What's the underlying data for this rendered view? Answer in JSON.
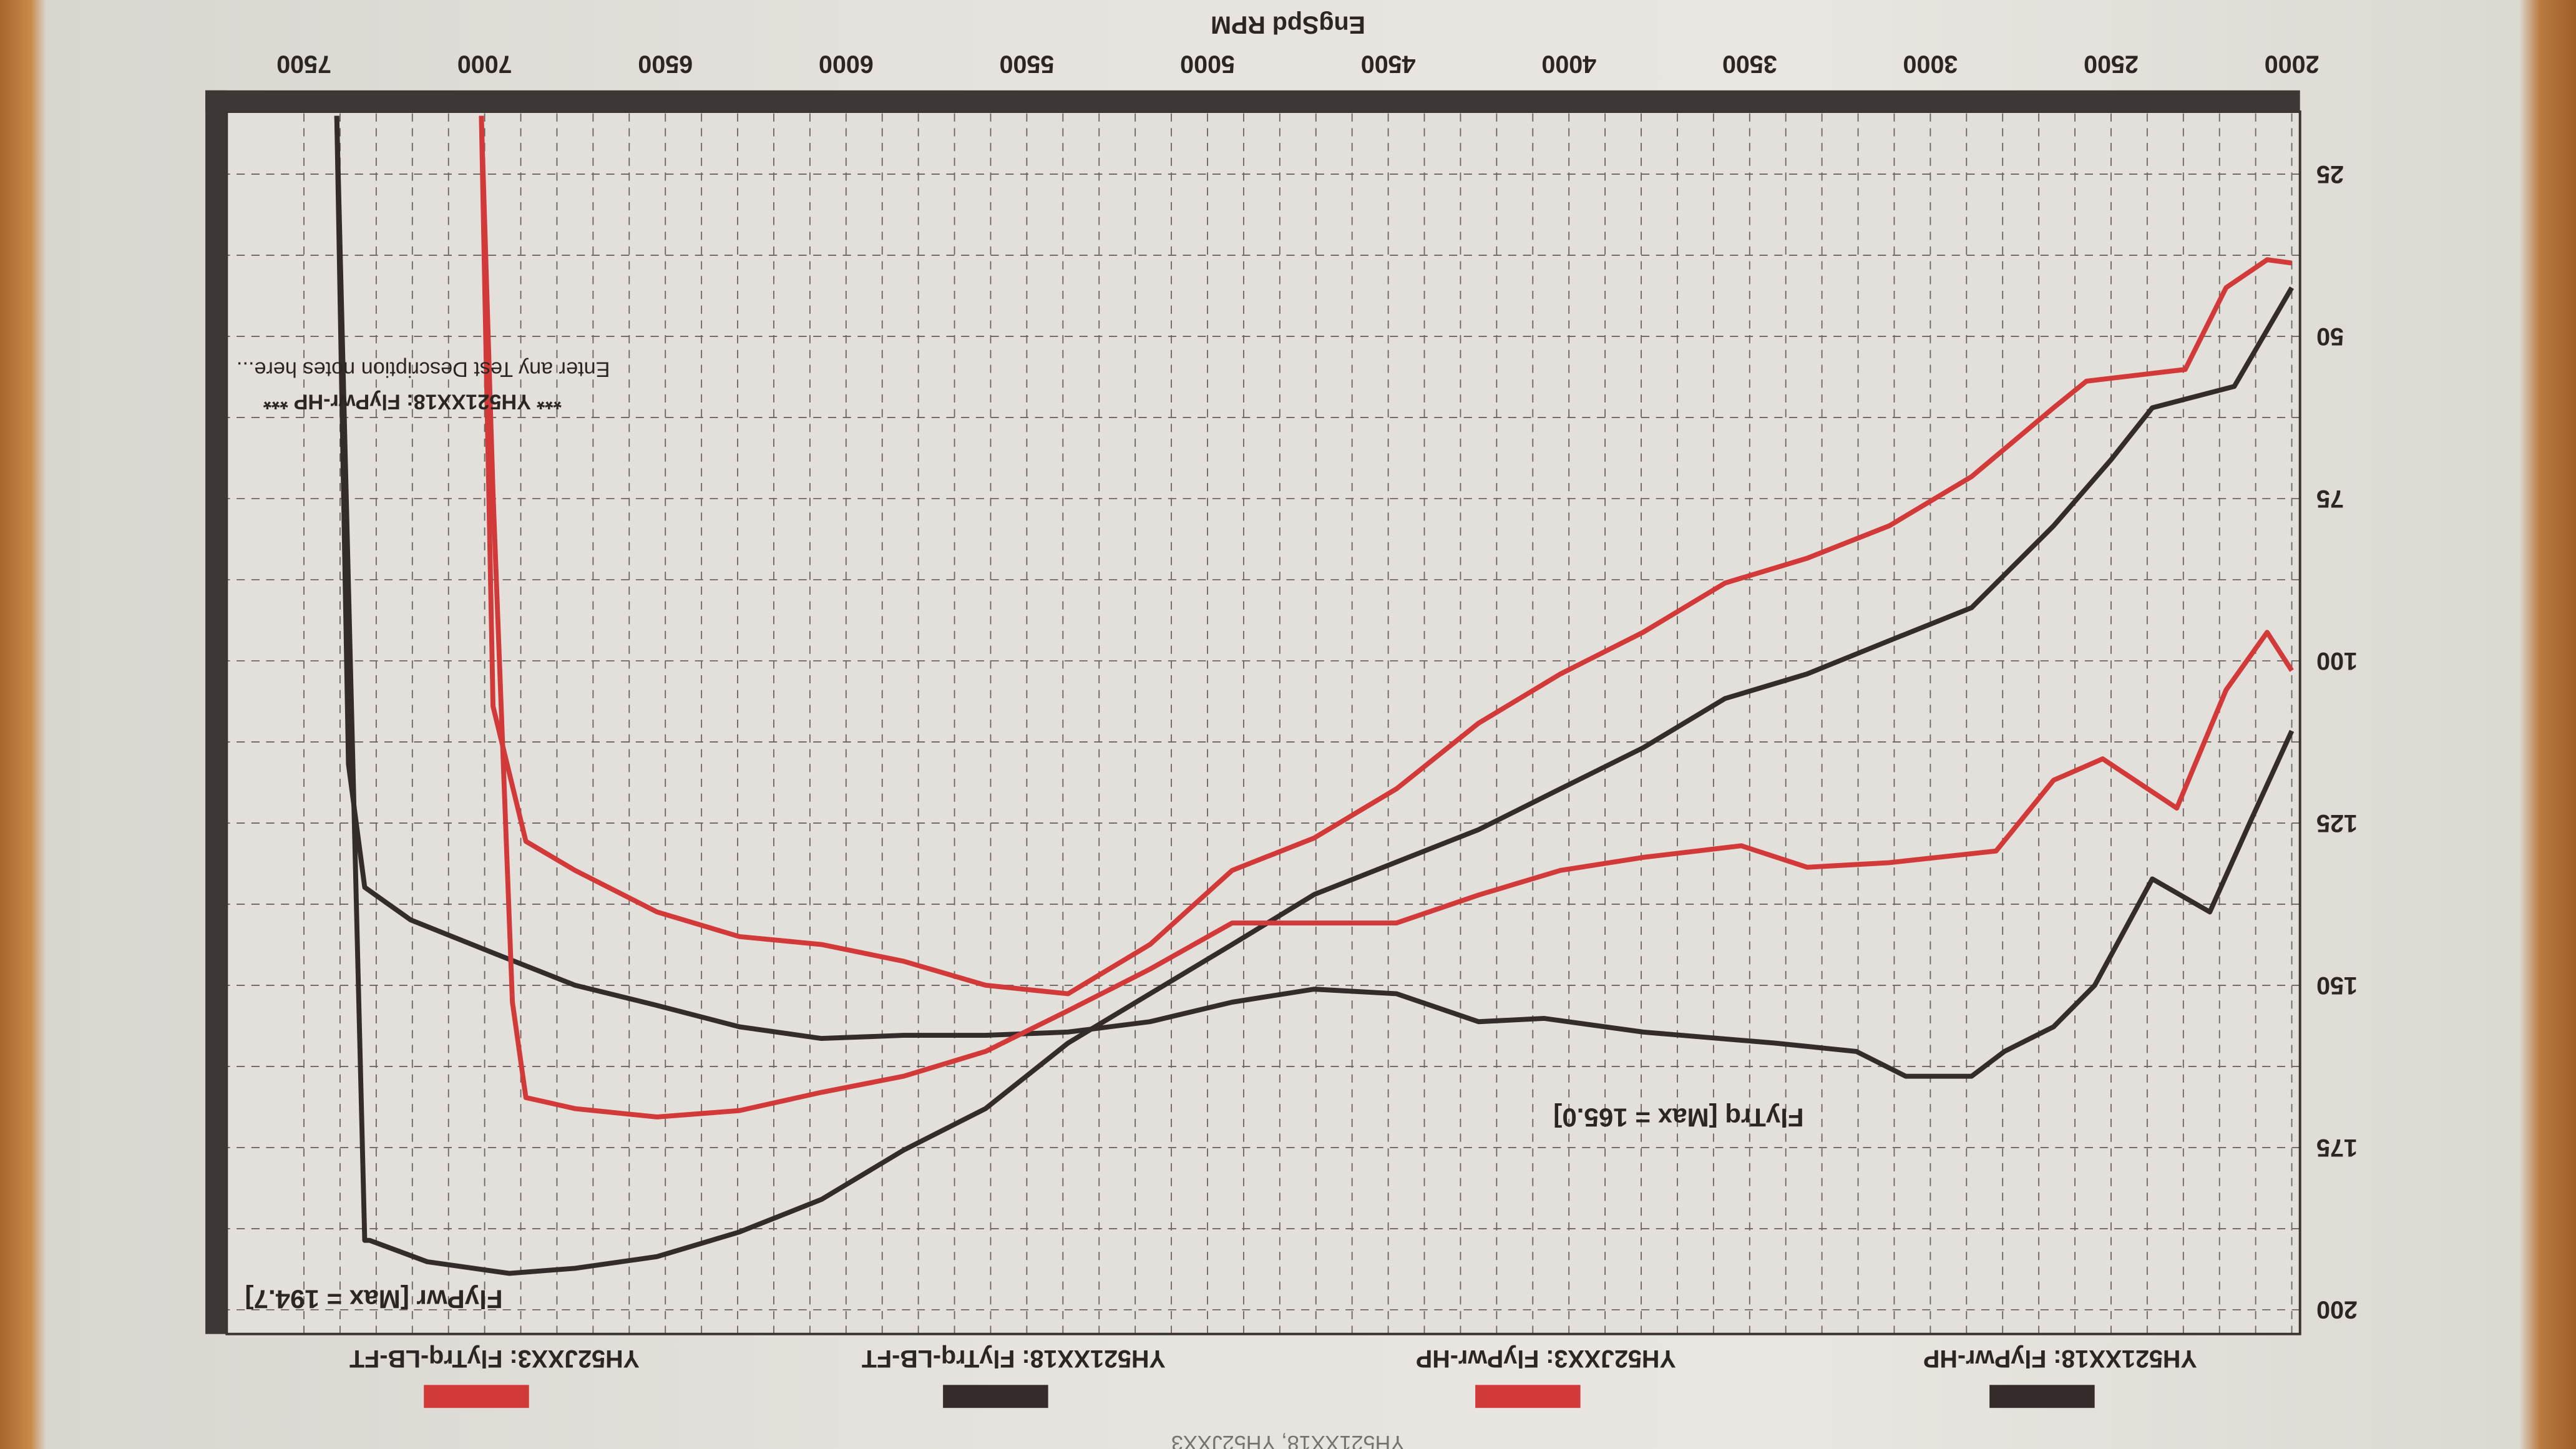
{
  "chart_data": {
    "type": "line",
    "title": "",
    "xlabel": "EngSpd RPM",
    "ylabel": "",
    "xlim": [
      2000,
      7500
    ],
    "ylim": [
      16,
      204
    ],
    "xticks": [
      2000,
      2500,
      3000,
      3500,
      4000,
      4500,
      5000,
      5500,
      6000,
      6500,
      7000,
      7500
    ],
    "yticks": [
      25,
      50,
      75,
      100,
      125,
      150,
      175,
      200
    ],
    "grid": true,
    "legend_position": "top",
    "orientation_note_visible": false,
    "series": [
      {
        "name": "YH521XX18: FlyPwr-HP",
        "color": "#332c2b",
        "x": [
          2000,
          2159,
          2386,
          2500,
          2659,
          2886,
          3114,
          3341,
          3568,
          3795,
          4023,
          4250,
          4477,
          4705,
          4932,
          5159,
          5386,
          5614,
          5841,
          6068,
          6295,
          6523,
          6750,
          6932,
          7159,
          7318,
          7332,
          7409
        ],
        "y": [
          42.5,
          57.7,
          61,
          69,
          79.2,
          91.8,
          96.9,
          102,
          105.8,
          113.4,
          119.7,
          126,
          131,
          136,
          143.7,
          151.3,
          158.9,
          169,
          175.4,
          183,
          188,
          191.8,
          193.6,
          194.4,
          192.6,
          189.3,
          189.3,
          16
        ]
      },
      {
        "name": "YH52JXX3: FlyPwr-HP",
        "color": "#d23a3a",
        "x": [
          2000,
          2068,
          2182,
          2295,
          2568,
          2659,
          2886,
          3114,
          3341,
          3568,
          3795,
          4023,
          4250,
          4477,
          4705,
          4932,
          5159,
          5386,
          5614,
          5841,
          6068,
          6295,
          6523,
          6750,
          6886,
          6977,
          7009
        ],
        "y": [
          38.7,
          38.2,
          42.5,
          55.1,
          56.9,
          61,
          71.6,
          79.2,
          84.2,
          88,
          95.6,
          102,
          109.6,
          119.7,
          127.3,
          132.3,
          143.7,
          151.3,
          150,
          146.3,
          143.7,
          142.5,
          138.7,
          132.3,
          127.8,
          107,
          16
        ]
      },
      {
        "name": "YH521XX18: FlyTrq-LB-FT",
        "color": "#332c2b",
        "x": [
          2000,
          2114,
          2227,
          2386,
          2545,
          2659,
          2795,
          2886,
          3068,
          3205,
          3432,
          3795,
          4068,
          4250,
          4477,
          4705,
          4932,
          5159,
          5386,
          5614,
          5841,
          6068,
          6295,
          6523,
          6750,
          6977,
          7205,
          7332,
          7377,
          7409
        ],
        "y": [
          110.8,
          124.7,
          138.7,
          133.6,
          150,
          156.4,
          160.2,
          164,
          164,
          160.2,
          158.9,
          157.2,
          155.1,
          155.6,
          151.3,
          150.6,
          152.6,
          155.6,
          157.2,
          157.7,
          157.7,
          158.2,
          156.4,
          153.1,
          150,
          145,
          139.9,
          134.9,
          115.9,
          16
        ]
      },
      {
        "name": "YH52JXX3: FlyTrq-LB-FT",
        "color": "#d23a3a",
        "x": [
          2000,
          2068,
          2182,
          2318,
          2523,
          2659,
          2818,
          3114,
          3341,
          3523,
          3795,
          4023,
          4250,
          4477,
          4705,
          4932,
          5159,
          5386,
          5614,
          5841,
          6068,
          6295,
          6523,
          6750,
          6886,
          6923,
          6977,
          7009
        ],
        "y": [
          101.5,
          95.6,
          104.5,
          122.7,
          115.1,
          118.4,
          129.3,
          131.1,
          131.8,
          128.5,
          130.3,
          132.3,
          136.1,
          140.4,
          140.4,
          140.4,
          147.5,
          153.9,
          160.2,
          164,
          166.5,
          169.3,
          170.3,
          169,
          167.3,
          152.6,
          74.1,
          16
        ]
      }
    ],
    "annotations": {
      "power_max": {
        "text": "FlyPwr [Max = 194.7]",
        "x": 6950,
        "y": 197
      },
      "torque_max": {
        "text": "FlyTrq [Max = 165.0]",
        "x": 3350,
        "y": 169
      },
      "series_note": {
        "text": "*** YH521XX18: FlyPwr-HP ***",
        "x": 7200,
        "y": 59
      },
      "description_note": {
        "text": "Enter any Test Description notes here...",
        "x": 7170,
        "y": 54
      }
    },
    "footer_text": "YH521XX18, YH52JXX3"
  }
}
